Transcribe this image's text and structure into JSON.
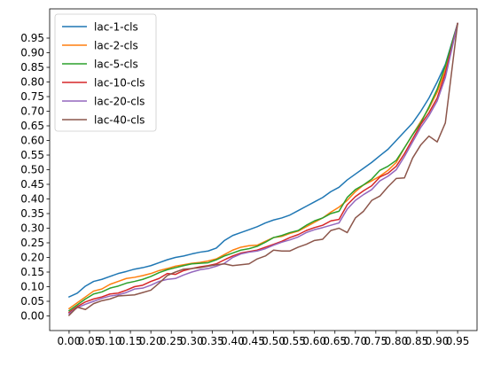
{
  "chart_data": {
    "type": "line",
    "title": "",
    "xlabel": "",
    "ylabel": "",
    "xlim": [
      -0.0475,
      0.9975
    ],
    "ylim": [
      -0.05,
      1.05
    ],
    "grid": false,
    "legend_position": "top-left",
    "x_ticks": [
      "0.00",
      "0.05",
      "0.10",
      "0.15",
      "0.20",
      "0.25",
      "0.30",
      "0.35",
      "0.40",
      "0.45",
      "0.50",
      "0.55",
      "0.60",
      "0.65",
      "0.70",
      "0.75",
      "0.80",
      "0.85",
      "0.90",
      "0.95"
    ],
    "y_ticks": [
      "0.00",
      "0.05",
      "0.10",
      "0.15",
      "0.20",
      "0.25",
      "0.30",
      "0.35",
      "0.40",
      "0.45",
      "0.50",
      "0.55",
      "0.60",
      "0.65",
      "0.70",
      "0.75",
      "0.80",
      "0.85",
      "0.90",
      "0.95"
    ],
    "x": [
      0.0,
      0.02,
      0.04,
      0.06,
      0.08,
      0.1,
      0.12,
      0.14,
      0.16,
      0.18,
      0.2,
      0.22,
      0.24,
      0.26,
      0.28,
      0.3,
      0.32,
      0.34,
      0.36,
      0.38,
      0.4,
      0.42,
      0.44,
      0.46,
      0.48,
      0.5,
      0.52,
      0.54,
      0.56,
      0.58,
      0.6,
      0.62,
      0.64,
      0.66,
      0.68,
      0.7,
      0.72,
      0.74,
      0.76,
      0.78,
      0.8,
      0.82,
      0.84,
      0.86,
      0.88,
      0.9,
      0.92,
      0.95
    ],
    "series": [
      {
        "name": "lac-1-cls",
        "color": "#1f77b4",
        "values": [
          0.065,
          0.078,
          0.102,
          0.118,
          0.125,
          0.135,
          0.145,
          0.152,
          0.16,
          0.165,
          0.172,
          0.182,
          0.192,
          0.2,
          0.205,
          0.212,
          0.218,
          0.222,
          0.232,
          0.258,
          0.275,
          0.285,
          0.295,
          0.305,
          0.318,
          0.328,
          0.335,
          0.345,
          0.36,
          0.375,
          0.39,
          0.405,
          0.425,
          0.44,
          0.465,
          0.485,
          0.505,
          0.525,
          0.548,
          0.57,
          0.6,
          0.63,
          0.66,
          0.7,
          0.745,
          0.8,
          0.86,
          1.0
        ]
      },
      {
        "name": "lac-2-cls",
        "color": "#ff7f0e",
        "values": [
          0.025,
          0.045,
          0.065,
          0.085,
          0.092,
          0.108,
          0.118,
          0.128,
          0.132,
          0.138,
          0.145,
          0.155,
          0.162,
          0.17,
          0.175,
          0.18,
          0.183,
          0.188,
          0.195,
          0.21,
          0.225,
          0.235,
          0.24,
          0.242,
          0.255,
          0.268,
          0.272,
          0.282,
          0.29,
          0.305,
          0.32,
          0.335,
          0.355,
          0.372,
          0.395,
          0.425,
          0.448,
          0.462,
          0.478,
          0.498,
          0.525,
          0.575,
          0.62,
          0.665,
          0.71,
          0.765,
          0.84,
          1.0
        ]
      },
      {
        "name": "lac-5-cls",
        "color": "#2ca02c",
        "values": [
          0.018,
          0.038,
          0.058,
          0.075,
          0.082,
          0.095,
          0.102,
          0.112,
          0.118,
          0.125,
          0.135,
          0.148,
          0.158,
          0.165,
          0.172,
          0.178,
          0.18,
          0.182,
          0.192,
          0.205,
          0.215,
          0.225,
          0.23,
          0.238,
          0.252,
          0.268,
          0.275,
          0.285,
          0.292,
          0.31,
          0.325,
          0.335,
          0.35,
          0.358,
          0.405,
          0.432,
          0.448,
          0.468,
          0.498,
          0.512,
          0.532,
          0.575,
          0.62,
          0.66,
          0.715,
          0.775,
          0.855,
          1.0
        ]
      },
      {
        "name": "lac-10-cls",
        "color": "#d62728",
        "values": [
          0.012,
          0.032,
          0.048,
          0.058,
          0.065,
          0.075,
          0.078,
          0.088,
          0.1,
          0.105,
          0.118,
          0.128,
          0.145,
          0.142,
          0.155,
          0.162,
          0.168,
          0.172,
          0.178,
          0.192,
          0.205,
          0.215,
          0.22,
          0.225,
          0.235,
          0.245,
          0.255,
          0.268,
          0.278,
          0.292,
          0.302,
          0.31,
          0.325,
          0.33,
          0.38,
          0.408,
          0.428,
          0.445,
          0.475,
          0.488,
          0.512,
          0.555,
          0.605,
          0.655,
          0.695,
          0.745,
          0.83,
          1.0
        ]
      },
      {
        "name": "lac-20-cls",
        "color": "#9467bd",
        "values": [
          0.008,
          0.028,
          0.04,
          0.05,
          0.06,
          0.068,
          0.072,
          0.08,
          0.092,
          0.095,
          0.105,
          0.118,
          0.125,
          0.128,
          0.14,
          0.15,
          0.158,
          0.162,
          0.17,
          0.18,
          0.2,
          0.212,
          0.218,
          0.222,
          0.23,
          0.242,
          0.252,
          0.26,
          0.27,
          0.285,
          0.295,
          0.302,
          0.31,
          0.318,
          0.365,
          0.395,
          0.415,
          0.432,
          0.462,
          0.478,
          0.5,
          0.545,
          0.595,
          0.645,
          0.685,
          0.735,
          0.815,
          1.0
        ]
      },
      {
        "name": "lac-40-cls",
        "color": "#8c564b",
        "values": [
          0.002,
          0.03,
          0.022,
          0.042,
          0.052,
          0.058,
          0.068,
          0.07,
          0.072,
          0.08,
          0.088,
          0.112,
          0.138,
          0.15,
          0.16,
          0.162,
          0.165,
          0.17,
          0.175,
          0.178,
          0.172,
          0.175,
          0.178,
          0.195,
          0.205,
          0.225,
          0.222,
          0.222,
          0.235,
          0.245,
          0.258,
          0.262,
          0.292,
          0.3,
          0.285,
          0.335,
          0.358,
          0.395,
          0.41,
          0.442,
          0.47,
          0.472,
          0.54,
          0.585,
          0.615,
          0.595,
          0.66,
          1.0
        ]
      }
    ]
  }
}
